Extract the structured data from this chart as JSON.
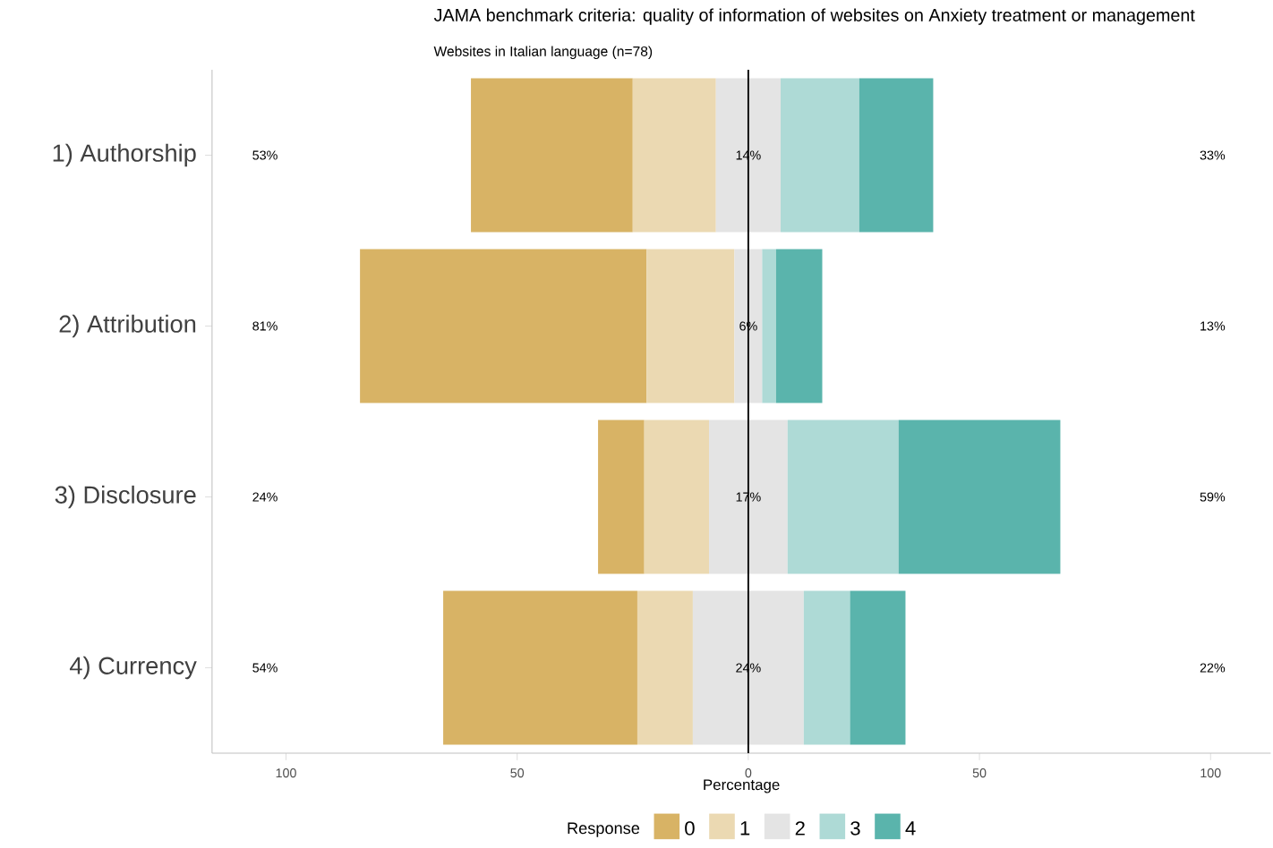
{
  "chart_data": {
    "type": "bar",
    "orientation": "horizontal",
    "title": "JAMA benchmark criteria: quality of information of websites on Anxiety treatment or management",
    "subtitle": "Websites in Italian language (n=78)",
    "xlabel": "Percentage",
    "legend_title": "Response",
    "categories": [
      "1) Authorship",
      "2) Attribution",
      "3) Disclosure",
      "4) Currency"
    ],
    "series": [
      {
        "name": "0",
        "color": "#d8b365",
        "values": [
          35,
          62,
          10,
          42
        ],
        "base": [
          -60,
          -84,
          -32.5,
          -66
        ]
      },
      {
        "name": "1",
        "color": "#ebd9b2",
        "values": [
          18,
          19,
          14,
          12
        ],
        "base": [
          -25,
          -22,
          -22.5,
          -24
        ]
      },
      {
        "name": "2",
        "color": "#e4e4e4",
        "values": [
          14,
          6,
          17,
          24
        ],
        "base": [
          -7,
          -3,
          -8.5,
          -12
        ],
        "value_labels": [
          "14%",
          "6%",
          "17%",
          "24%"
        ]
      },
      {
        "name": "3",
        "color": "#aedad6",
        "values": [
          17,
          3,
          24,
          10
        ],
        "base": [
          7,
          3,
          8.5,
          12
        ]
      },
      {
        "name": "4",
        "color": "#5ab4ac",
        "values": [
          16,
          10,
          35,
          12
        ],
        "base": [
          24,
          6,
          32.5,
          22
        ]
      }
    ],
    "xlim": [
      -116,
      113
    ],
    "xticks": [
      {
        "value": -100,
        "label": "100"
      },
      {
        "value": -50,
        "label": "50"
      },
      0,
      50,
      100
    ],
    "ref_lines": [
      {
        "axis": "x",
        "value": 0,
        "color": "#000000"
      }
    ],
    "annotations": [
      "53%",
      "33%",
      "81%",
      "13%",
      "24%",
      "59%",
      "54%",
      "22%"
    ],
    "legend": "bottom",
    "grid": false
  }
}
